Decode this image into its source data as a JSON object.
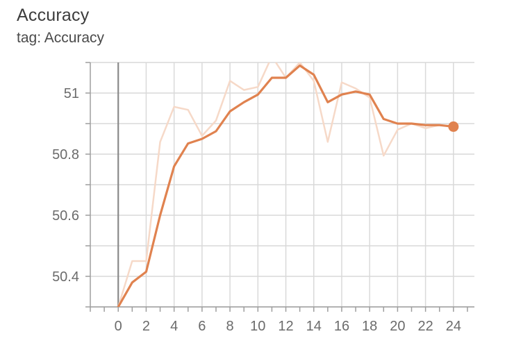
{
  "header": {
    "title": "Accuracy",
    "subtitle": "tag: Accuracy"
  },
  "colors": {
    "main_line": "#e0824f",
    "raw_line": "#f6d9c8",
    "grid": "#d9d9d9",
    "axis": "#9e9e9e",
    "zero_line": "#8a8a8a"
  },
  "chart_data": {
    "type": "line",
    "title": "Accuracy",
    "subtitle": "tag: Accuracy",
    "xlim": [
      -2,
      25.5
    ],
    "ylim": [
      50.3,
      51.1
    ],
    "x_ticks": [
      0,
      2,
      4,
      6,
      8,
      10,
      12,
      14,
      16,
      18,
      20,
      22,
      24
    ],
    "y_ticks": [
      50.4,
      50.6,
      50.8,
      51
    ],
    "y_tick_labels": [
      "50.4",
      "50.6",
      "50.8",
      "51"
    ],
    "grid": true,
    "series": [
      {
        "x": [
          0,
          1,
          2,
          3,
          4,
          5,
          6,
          7,
          8,
          9,
          10,
          11,
          12,
          13,
          14,
          15,
          16,
          17,
          18,
          19,
          20,
          21,
          22,
          23,
          24
        ],
        "values": [
          50.3,
          50.38,
          50.415,
          50.6,
          50.76,
          50.835,
          50.85,
          50.875,
          50.94,
          50.97,
          50.995,
          51.05,
          51.05,
          51.09,
          51.06,
          50.97,
          50.995,
          51.005,
          50.995,
          50.915,
          50.9,
          50.9,
          50.895,
          50.895,
          50.89
        ],
        "style": "smoothed"
      },
      {
        "x": [
          0,
          1,
          2,
          3,
          4,
          5,
          6,
          7,
          8,
          9,
          10,
          11,
          12,
          13,
          14,
          15,
          16,
          17,
          18,
          19,
          20,
          21,
          22,
          23,
          24
        ],
        "values": [
          50.3,
          50.45,
          50.45,
          50.84,
          50.955,
          50.945,
          50.86,
          50.91,
          51.04,
          51.01,
          51.02,
          51.12,
          51.05,
          51.1,
          51.04,
          50.84,
          51.035,
          51.015,
          50.985,
          50.795,
          50.88,
          50.9,
          50.885,
          50.895,
          50.89
        ],
        "style": "raw"
      }
    ]
  }
}
